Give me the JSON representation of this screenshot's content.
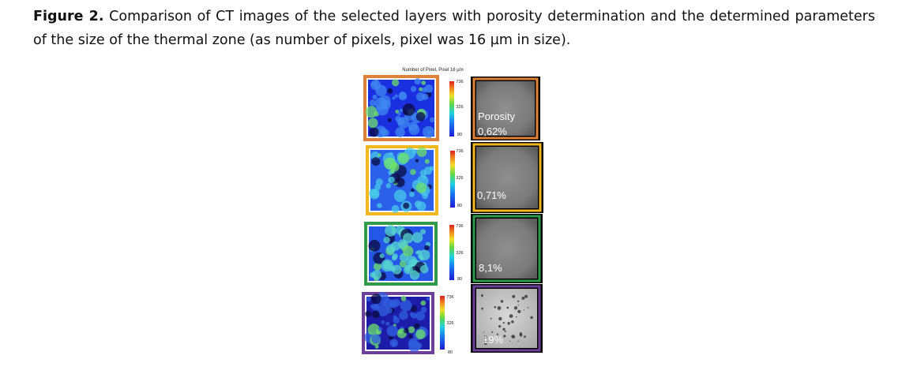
{
  "caption": {
    "label": "Figure 2.",
    "text": " Comparison of CT images of the selected layers with porosity determination and the determined parameters of the size of the thermal zone (as number of pixels, pixel was 16 µm in size)."
  },
  "figure": {
    "colorbar_title": "Number of Pixel, Pixel 16 µm",
    "layers": [
      {
        "frame_color": "#e0813a",
        "ticks": [
          "736",
          "326",
          "80"
        ],
        "porosity_label": "Porosity",
        "porosity_value": "0,62%"
      },
      {
        "frame_color": "#f2b81e",
        "ticks": [
          "736",
          "326",
          "80"
        ],
        "porosity_label": "",
        "porosity_value": "0,71%"
      },
      {
        "frame_color": "#2e9a4a",
        "ticks": [
          "736",
          "326",
          "80"
        ],
        "porosity_label": "",
        "porosity_value": "8,1%"
      },
      {
        "frame_color": "#6b3f9a",
        "ticks": [
          "736",
          "326",
          "80"
        ],
        "porosity_label": "",
        "porosity_value": "19%"
      }
    ]
  }
}
